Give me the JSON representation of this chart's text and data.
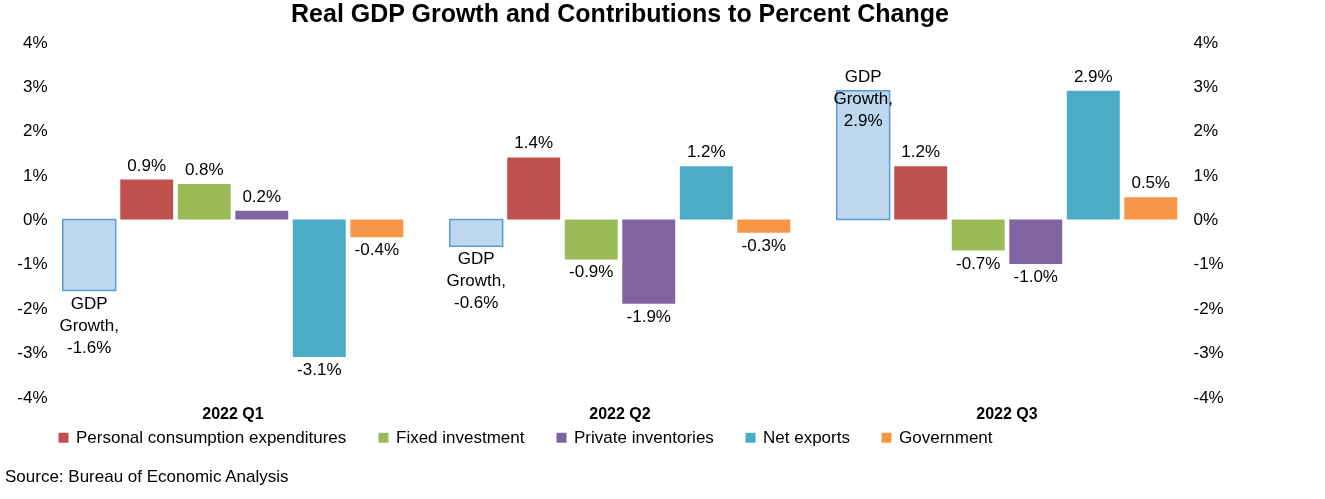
{
  "chart_data": {
    "type": "bar",
    "title": "Real GDP Growth and Contributions to Percent Change",
    "categories": [
      "2022 Q1",
      "2022 Q2",
      "2022 Q3"
    ],
    "series": [
      {
        "color": "#bdd7ee",
        "values": [
          -1.6,
          -0.6,
          2.9
        ],
        "value_labels": [
          "GDP Growth, -1.6%",
          "GDP Growth, -0.6%",
          "GDP Growth, 2.9%"
        ]
      },
      {
        "name": "Personal consumption expenditures",
        "color": "#c0504d",
        "values": [
          0.9,
          1.4,
          1.2
        ],
        "value_labels": [
          "0.9%",
          "1.4%",
          "1.2%"
        ]
      },
      {
        "name": "Fixed investment",
        "color": "#9bbb59",
        "values": [
          0.8,
          -0.9,
          -0.7
        ],
        "value_labels": [
          "0.8%",
          "-0.9%",
          "-0.7%"
        ]
      },
      {
        "name": "Private inventories",
        "color": "#8064a2",
        "values": [
          0.2,
          -1.9,
          -1.0
        ],
        "value_labels": [
          "0.2%",
          "-1.9%",
          "-1.0%"
        ]
      },
      {
        "name": "Net exports",
        "color": "#4bacc6",
        "values": [
          -3.1,
          1.2,
          2.9
        ],
        "value_labels": [
          "-3.1%",
          "1.2%",
          "2.9%"
        ]
      },
      {
        "name": "Government",
        "color": "#f79646",
        "values": [
          -0.4,
          -0.3,
          0.5
        ],
        "value_labels": [
          "-0.4%",
          "-0.3%",
          "0.5%"
        ]
      }
    ],
    "ylim": [
      -4,
      4
    ],
    "yticks": [
      {
        "value": -4,
        "label": "-4%"
      },
      {
        "value": -3,
        "label": "-3%"
      },
      {
        "value": -2,
        "label": "-2%"
      },
      {
        "value": -1,
        "label": "-1%"
      },
      {
        "value": 0,
        "label": "0%"
      },
      {
        "value": 1,
        "label": "1%"
      },
      {
        "value": 2,
        "label": "2%"
      },
      {
        "value": 3,
        "label": "3%"
      },
      {
        "value": 4,
        "label": "4%"
      }
    ],
    "y2lim": [
      -4,
      4
    ],
    "y2ticks": [
      {
        "value": -4,
        "label": "-4%"
      },
      {
        "value": -3,
        "label": "-3%"
      },
      {
        "value": -2,
        "label": "-2%"
      },
      {
        "value": -1,
        "label": "-1%"
      },
      {
        "value": 0,
        "label": "0%"
      },
      {
        "value": 1,
        "label": "1%"
      },
      {
        "value": 2,
        "label": "2%"
      },
      {
        "value": 3,
        "label": "3%"
      },
      {
        "value": 4,
        "label": "4%"
      }
    ],
    "grid": false,
    "legend": "bottom",
    "annotations": [
      "Source: Bureau of Economic Analysis"
    ]
  }
}
